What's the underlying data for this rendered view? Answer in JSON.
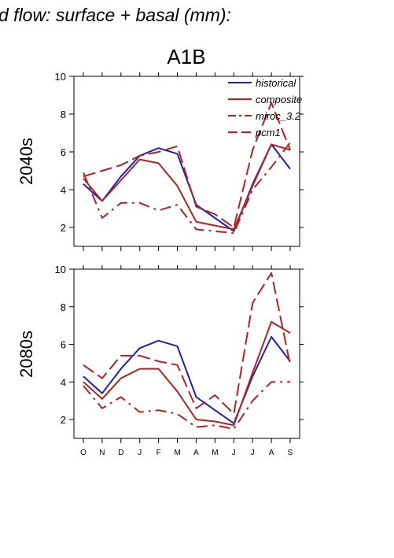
{
  "figure": {
    "header": "d flow: surface + basal (mm):",
    "scenario": "A1B"
  },
  "colors": {
    "historical": "#1f1fb4",
    "composite": "#b22222",
    "miroc_3.2": "#b22222",
    "pcm1": "#b22222"
  },
  "chart_data": [
    {
      "type": "line",
      "title": "A1B",
      "ylabel": "2040s",
      "xlabel": "",
      "categories": [
        "O",
        "N",
        "D",
        "J",
        "F",
        "M",
        "A",
        "M",
        "J",
        "J",
        "A",
        "S"
      ],
      "ylim": [
        1,
        10
      ],
      "yticks": [
        2,
        4,
        6,
        8,
        10
      ],
      "grid": false,
      "legend": "top-right",
      "series": [
        {
          "name": "historical",
          "style": "solid",
          "values": [
            4.3,
            3.4,
            4.7,
            5.8,
            6.2,
            5.9,
            3.2,
            2.5,
            1.8,
            4.3,
            6.4,
            5.1
          ]
        },
        {
          "name": "composite",
          "style": "solid",
          "values": [
            4.6,
            3.4,
            4.5,
            5.6,
            5.4,
            4.2,
            2.3,
            2.1,
            1.9,
            4.2,
            6.4,
            6.1
          ]
        },
        {
          "name": "miroc_3.2",
          "style": "dashdot",
          "values": [
            4.9,
            2.5,
            3.3,
            3.3,
            2.9,
            3.2,
            1.9,
            1.8,
            1.7,
            4.0,
            5.2,
            6.5
          ]
        },
        {
          "name": "pcm1",
          "style": "dashed",
          "values": [
            4.7,
            5.0,
            5.3,
            5.8,
            6.0,
            6.3,
            3.1,
            2.7,
            2.0,
            6.1,
            8.6,
            6.1
          ]
        }
      ]
    },
    {
      "type": "line",
      "title": "",
      "ylabel": "2080s",
      "xlabel": "",
      "categories": [
        "O",
        "N",
        "D",
        "J",
        "F",
        "M",
        "A",
        "M",
        "J",
        "J",
        "A",
        "S"
      ],
      "ylim": [
        1,
        10
      ],
      "yticks": [
        2,
        4,
        6,
        8,
        10
      ],
      "grid": false,
      "legend": "none",
      "series": [
        {
          "name": "historical",
          "style": "solid",
          "values": [
            4.3,
            3.4,
            4.7,
            5.8,
            6.2,
            5.9,
            3.2,
            2.5,
            1.8,
            4.3,
            6.4,
            5.1
          ]
        },
        {
          "name": "composite",
          "style": "solid",
          "values": [
            4.0,
            3.1,
            4.2,
            4.7,
            4.7,
            3.5,
            2.0,
            1.9,
            1.7,
            4.5,
            7.2,
            6.6
          ]
        },
        {
          "name": "miroc_3.2",
          "style": "dashdot",
          "values": [
            3.8,
            2.6,
            3.2,
            2.4,
            2.5,
            2.3,
            1.6,
            1.7,
            1.5,
            3.0,
            4.0,
            4.0
          ]
        },
        {
          "name": "pcm1",
          "style": "dashed",
          "values": [
            4.9,
            4.2,
            5.4,
            5.4,
            5.1,
            4.9,
            2.6,
            3.3,
            2.3,
            8.2,
            9.8,
            4.9
          ]
        }
      ]
    }
  ]
}
